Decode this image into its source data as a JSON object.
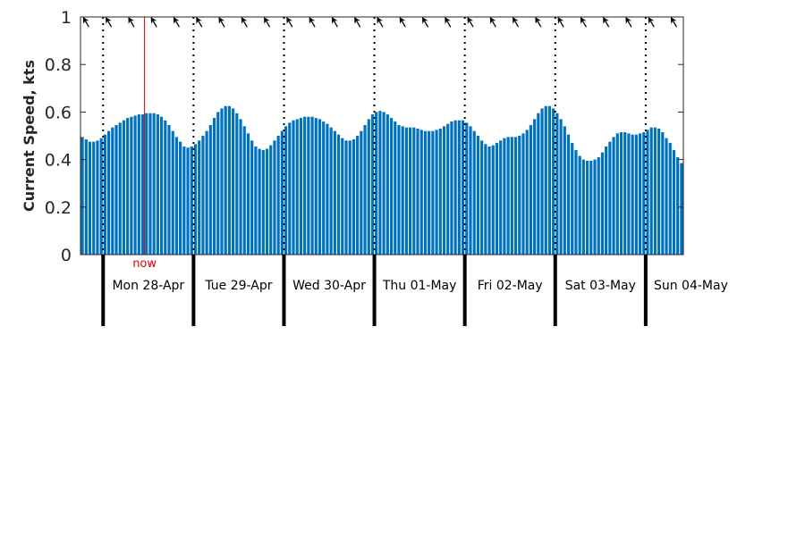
{
  "chart_data": {
    "type": "bar",
    "ylabel": "Current Speed, kts",
    "ylim": [
      0,
      1
    ],
    "yticks": [
      0,
      0.2,
      0.4,
      0.6,
      0.8,
      1
    ],
    "ytick_labels": [
      "0",
      "0.2",
      "0.4",
      "0.6",
      "0.8",
      "1"
    ],
    "bar_color": "#0072BD",
    "now_color": "#E00000",
    "now_label": "now",
    "now_hour": 17,
    "hours_per_bar": 1,
    "day_boundary_hours": [
      6,
      30,
      54,
      78,
      102,
      126,
      150
    ],
    "day_labels": [
      "Mon 28-Apr",
      "Tue 29-Apr",
      "Wed 30-Apr",
      "Thu 01-May",
      "Fri 02-May",
      "Sat 03-May",
      "Sun 04-May"
    ],
    "direction_arrow_hours": [
      1.5,
      7.5,
      13.5,
      19.5,
      25.5,
      31.5,
      37.5,
      43.5,
      49.5,
      55.5,
      61.5,
      67.5,
      73.5,
      79.5,
      85.5,
      91.5,
      97.5,
      103.5,
      109.5,
      115.5,
      121.5,
      127.5,
      133.5,
      139.5,
      145.5,
      151.5,
      157.5
    ],
    "direction_arrow_degrees": [
      330,
      330,
      330,
      330,
      330,
      330,
      330,
      330,
      330,
      330,
      330,
      330,
      330,
      330,
      330,
      330,
      330,
      330,
      330,
      330,
      330,
      330,
      330,
      330,
      330,
      330,
      330
    ],
    "grid": false,
    "values": [
      0.495,
      0.485,
      0.475,
      0.475,
      0.48,
      0.49,
      0.505,
      0.52,
      0.535,
      0.545,
      0.555,
      0.565,
      0.575,
      0.58,
      0.585,
      0.59,
      0.59,
      0.595,
      0.595,
      0.595,
      0.59,
      0.58,
      0.565,
      0.545,
      0.52,
      0.495,
      0.475,
      0.455,
      0.45,
      0.455,
      0.465,
      0.48,
      0.5,
      0.52,
      0.545,
      0.575,
      0.6,
      0.615,
      0.625,
      0.625,
      0.615,
      0.595,
      0.57,
      0.54,
      0.51,
      0.48,
      0.455,
      0.445,
      0.44,
      0.445,
      0.46,
      0.48,
      0.5,
      0.52,
      0.54,
      0.555,
      0.565,
      0.57,
      0.575,
      0.58,
      0.58,
      0.58,
      0.575,
      0.57,
      0.56,
      0.55,
      0.535,
      0.52,
      0.505,
      0.49,
      0.48,
      0.48,
      0.485,
      0.5,
      0.52,
      0.545,
      0.57,
      0.59,
      0.6,
      0.605,
      0.6,
      0.59,
      0.575,
      0.56,
      0.545,
      0.54,
      0.535,
      0.535,
      0.535,
      0.53,
      0.525,
      0.52,
      0.52,
      0.52,
      0.525,
      0.53,
      0.54,
      0.55,
      0.56,
      0.565,
      0.565,
      0.565,
      0.555,
      0.54,
      0.52,
      0.5,
      0.48,
      0.465,
      0.455,
      0.46,
      0.47,
      0.48,
      0.49,
      0.495,
      0.495,
      0.495,
      0.5,
      0.51,
      0.525,
      0.545,
      0.57,
      0.595,
      0.615,
      0.625,
      0.625,
      0.615,
      0.595,
      0.57,
      0.54,
      0.505,
      0.47,
      0.44,
      0.415,
      0.4,
      0.395,
      0.395,
      0.4,
      0.41,
      0.43,
      0.455,
      0.475,
      0.495,
      0.51,
      0.515,
      0.515,
      0.51,
      0.505,
      0.505,
      0.51,
      0.515,
      0.525,
      0.535,
      0.535,
      0.53,
      0.515,
      0.49,
      0.47,
      0.44,
      0.41,
      0.385
    ]
  }
}
